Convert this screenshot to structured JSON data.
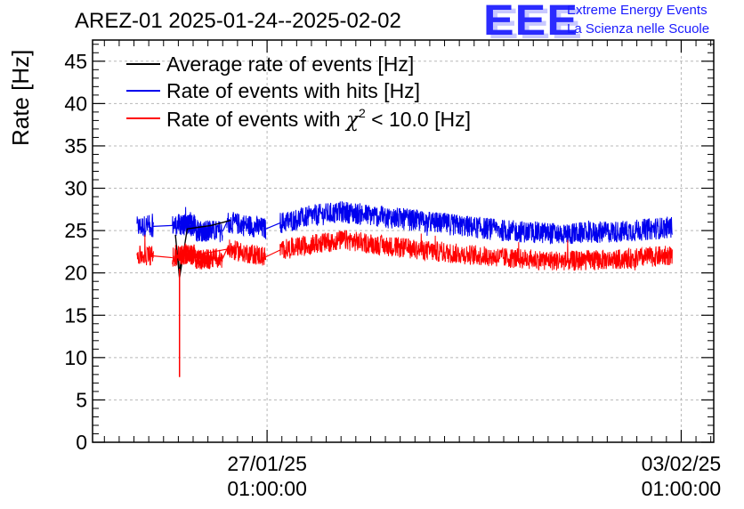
{
  "header": {
    "title": "AREZ-01 2025-01-24--2025-02-02",
    "logo_text": "EEE",
    "logo_line1": "Extreme Energy Events",
    "logo_line2": "La Scienza nelle Scuole"
  },
  "colors": {
    "average": "#000000",
    "hits": "#0000ee",
    "chi2": "#ff0000",
    "grid": "#b8b8b8",
    "logo": "#2b2bff"
  },
  "chart_data": {
    "type": "line",
    "title": "AREZ-01 2025-01-24--2025-02-02",
    "xlabel": "",
    "ylabel": "Rate [Hz]",
    "ylim": [
      0,
      47.5
    ],
    "yticks": [
      0,
      5,
      10,
      15,
      20,
      25,
      30,
      35,
      40,
      45
    ],
    "xlim_days": [
      -2.95,
      7.55
    ],
    "x_unit": "days since 27/01/25 01:00:00",
    "xticks": [
      {
        "day": 0,
        "label_date": "27/01/25",
        "label_time": "01:00:00"
      },
      {
        "day": 7,
        "label_date": "03/02/25",
        "label_time": "01:00:00"
      }
    ],
    "grid": true,
    "legend_position": "top-left",
    "legend": {
      "average": "Average rate of events [Hz]",
      "hits": "Rate of events with hits [Hz]",
      "chi2_prefix": "Rate of events with ",
      "chi2_symbol": "χ",
      "chi2_superscript": "2",
      "chi2_suffix": " < 10.0 [Hz]"
    },
    "data_segments_days": [
      [
        -2.2,
        -1.9
      ],
      [
        -1.55,
        -0.7
      ],
      [
        -1.5,
        -0.6
      ],
      [
        -1.45,
        -0.55
      ],
      [
        -1.4,
        -0.55
      ]
    ],
    "segments_days": [
      [
        -2.2,
        -1.92
      ],
      [
        -1.6,
        -0.75
      ],
      [
        -1.48,
        -1.22
      ],
      [
        -1.45,
        -0.95
      ],
      [
        -0.68,
        -0.02
      ],
      [
        0.22,
        6.85
      ]
    ],
    "series": [
      {
        "name": "Rate of events with hits",
        "key": "hits",
        "noise": 1.3,
        "points": [
          {
            "x": -2.2,
            "y": 25.4
          },
          {
            "x": -2.0,
            "y": 25.6
          },
          {
            "x": -1.92,
            "y": 25.5
          },
          {
            "x": -1.6,
            "y": 25.6
          },
          {
            "x": -1.2,
            "y": 25.0
          },
          {
            "x": -0.75,
            "y": 24.9
          },
          {
            "x": -1.48,
            "y": 25.7
          },
          {
            "x": -1.22,
            "y": 25.6
          },
          {
            "x": -0.68,
            "y": 26.0
          },
          {
            "x": -0.3,
            "y": 25.6
          },
          {
            "x": -0.02,
            "y": 25.2
          },
          {
            "x": 0.22,
            "y": 25.9
          },
          {
            "x": 0.8,
            "y": 26.8
          },
          {
            "x": 1.3,
            "y": 27.2
          },
          {
            "x": 2.0,
            "y": 26.6
          },
          {
            "x": 3.0,
            "y": 25.8
          },
          {
            "x": 4.0,
            "y": 25.0
          },
          {
            "x": 5.0,
            "y": 24.6
          },
          {
            "x": 6.0,
            "y": 24.9
          },
          {
            "x": 6.85,
            "y": 25.4
          }
        ]
      },
      {
        "name": "Rate of events with chi2 < 10.0",
        "key": "chi2",
        "noise": 1.2,
        "points": [
          {
            "x": -2.2,
            "y": 22.0
          },
          {
            "x": -2.0,
            "y": 22.1
          },
          {
            "x": -1.92,
            "y": 22.0
          },
          {
            "x": -1.6,
            "y": 21.8
          },
          {
            "x": -1.2,
            "y": 21.6
          },
          {
            "x": -0.75,
            "y": 21.7
          },
          {
            "x": -1.48,
            "y": 22.2
          },
          {
            "x": -1.22,
            "y": 22.1
          },
          {
            "x": -0.68,
            "y": 22.8
          },
          {
            "x": -0.3,
            "y": 22.3
          },
          {
            "x": -0.02,
            "y": 21.9
          },
          {
            "x": 0.22,
            "y": 22.7
          },
          {
            "x": 0.8,
            "y": 23.4
          },
          {
            "x": 1.3,
            "y": 23.9
          },
          {
            "x": 2.0,
            "y": 23.2
          },
          {
            "x": 3.0,
            "y": 22.4
          },
          {
            "x": 4.0,
            "y": 21.8
          },
          {
            "x": 5.0,
            "y": 21.4
          },
          {
            "x": 6.0,
            "y": 21.6
          },
          {
            "x": 6.85,
            "y": 22.1
          }
        ],
        "spike": {
          "x": -1.48,
          "y": 7.7
        }
      },
      {
        "name": "Average rate of events",
        "key": "average",
        "line_points": [
          {
            "x": -1.55,
            "y": 24.5
          },
          {
            "x": -1.48,
            "y": 19.4
          },
          {
            "x": -1.35,
            "y": 25.2
          },
          {
            "x": -0.95,
            "y": 25.6
          },
          {
            "x": -0.62,
            "y": 26.2
          }
        ],
        "dip_points": [
          {
            "x": -1.5,
            "y": 22.0
          },
          {
            "x": -1.48,
            "y": 19.6
          },
          {
            "x": -1.45,
            "y": 22.0
          }
        ]
      }
    ]
  }
}
